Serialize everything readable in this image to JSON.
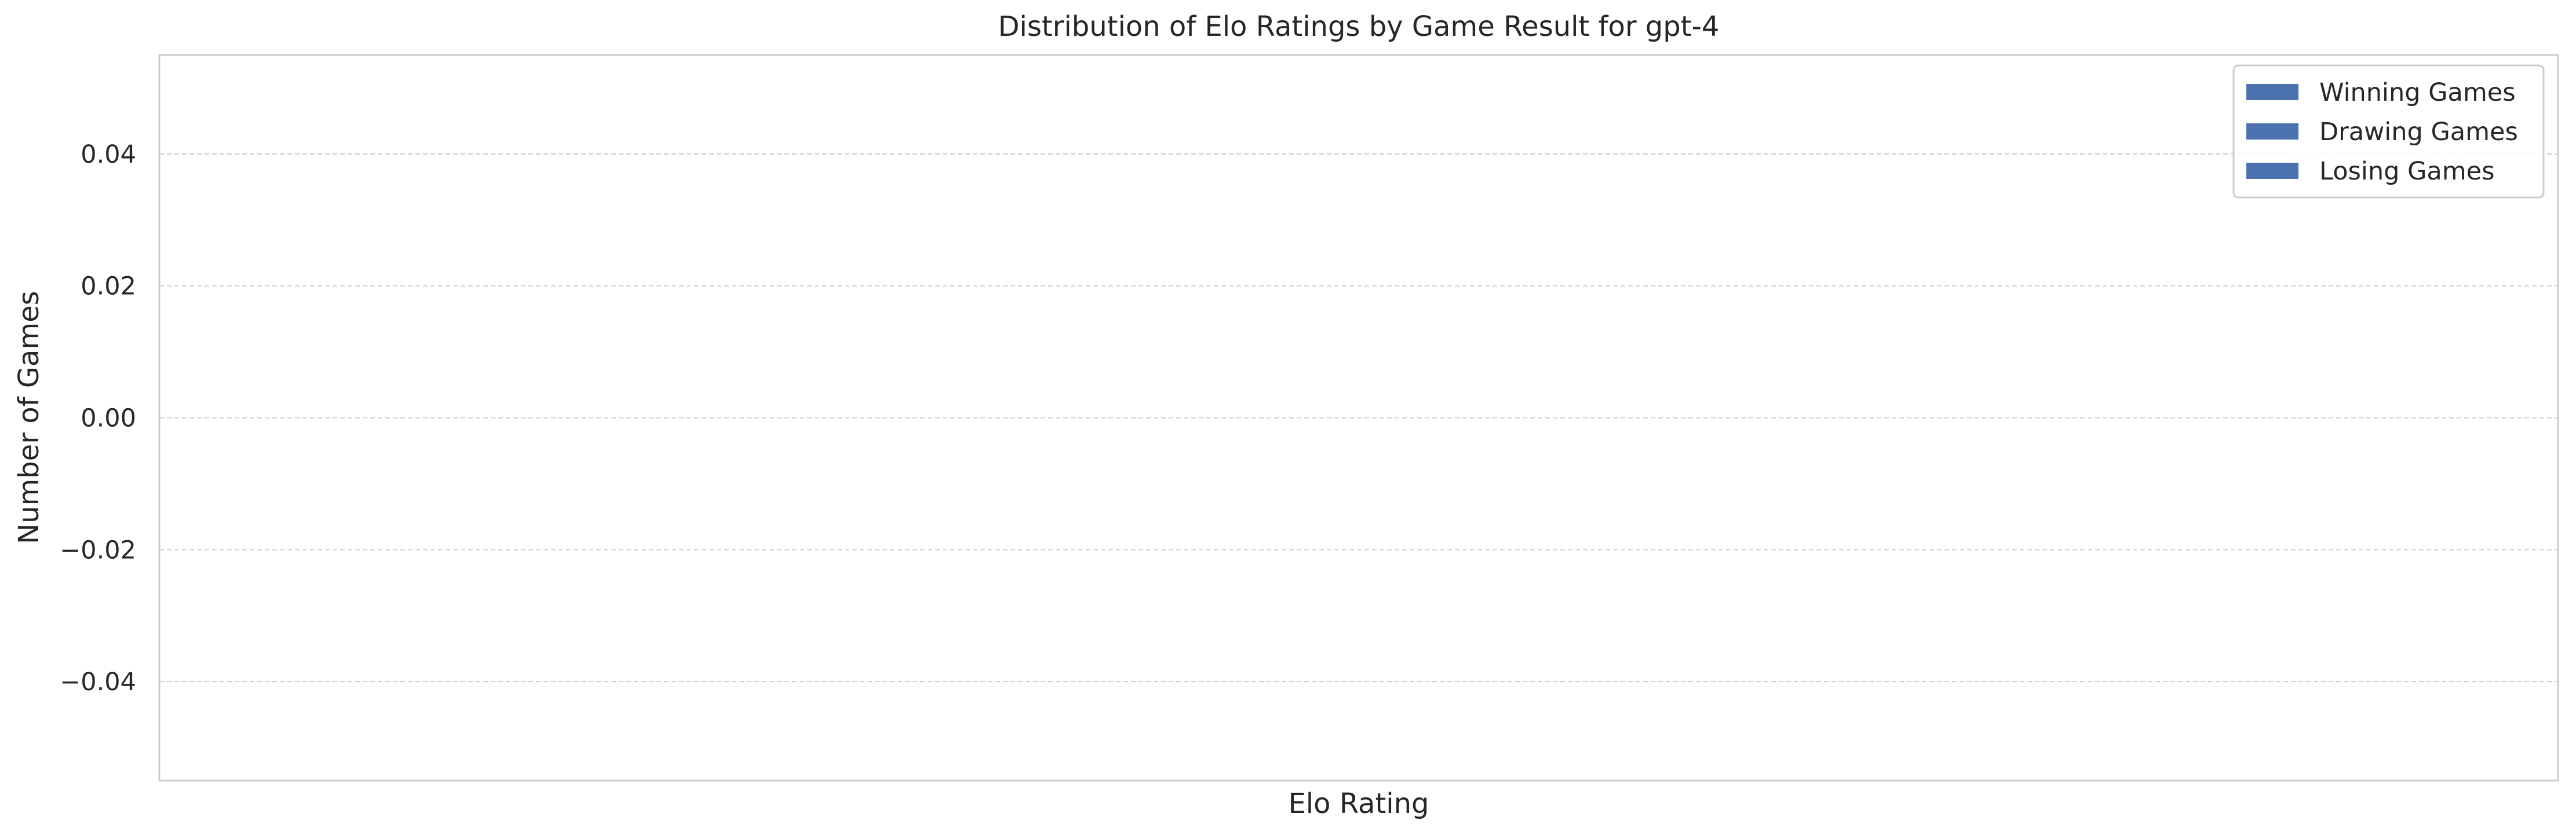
{
  "chart_data": {
    "type": "bar",
    "title": "Distribution of Elo Ratings by Game Result for gpt-4",
    "xlabel": "Elo Rating",
    "ylabel": "Number of Games",
    "ylim": [
      -0.055,
      0.055
    ],
    "yticks": [
      0.04,
      0.02,
      0.0,
      -0.02,
      -0.04
    ],
    "ytick_labels": [
      "0.04",
      "0.02",
      "0.00",
      "−0.02",
      "−0.04"
    ],
    "grid": "horizontal dashed",
    "legend_position": "top-right",
    "series": [
      {
        "name": "Winning Games",
        "values": [],
        "color": "#4c72b0"
      },
      {
        "name": "Drawing Games",
        "values": [],
        "color": "#4c72b0"
      },
      {
        "name": "Losing Games",
        "values": [],
        "color": "#4c72b0"
      }
    ],
    "colors": {
      "axes_border": "#cccccc",
      "grid": "#cccccc",
      "text": "#262626"
    }
  }
}
